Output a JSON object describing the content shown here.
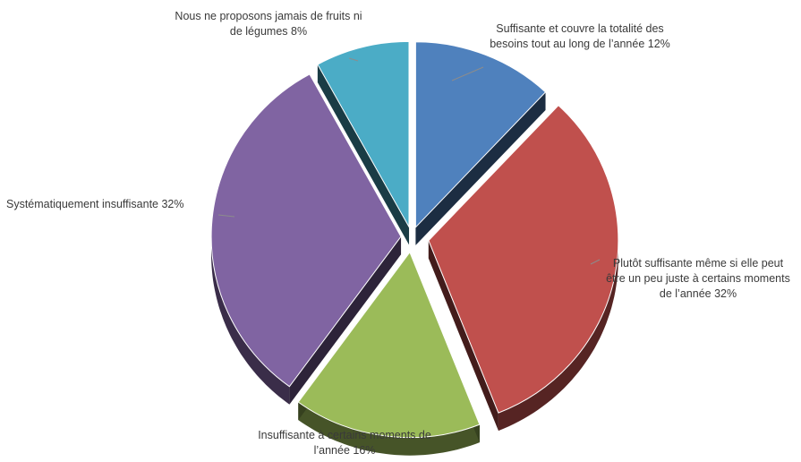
{
  "chart_data": {
    "type": "pie",
    "title": "",
    "unit": "%",
    "slices": [
      {
        "label": "Suffisante et couvre la totalité des besoins tout au long de l’année 12%",
        "value": 12,
        "color": "#4f81bd"
      },
      {
        "label": "Plutôt suffisante même si elle peut être un peu juste à certains moments de l’année 32%",
        "value": 32,
        "color": "#c0504d"
      },
      {
        "label": "Insuffisante à certains moments de l’année 16%",
        "value": 16,
        "color": "#9bbb59"
      },
      {
        "label": "Systématiquement insuffisante 32%",
        "value": 32,
        "color": "#8064a2"
      },
      {
        "label": "Nous ne proposons jamais de fruits ni de légumes 8%",
        "value": 8,
        "color": "#4bacc6"
      }
    ]
  }
}
